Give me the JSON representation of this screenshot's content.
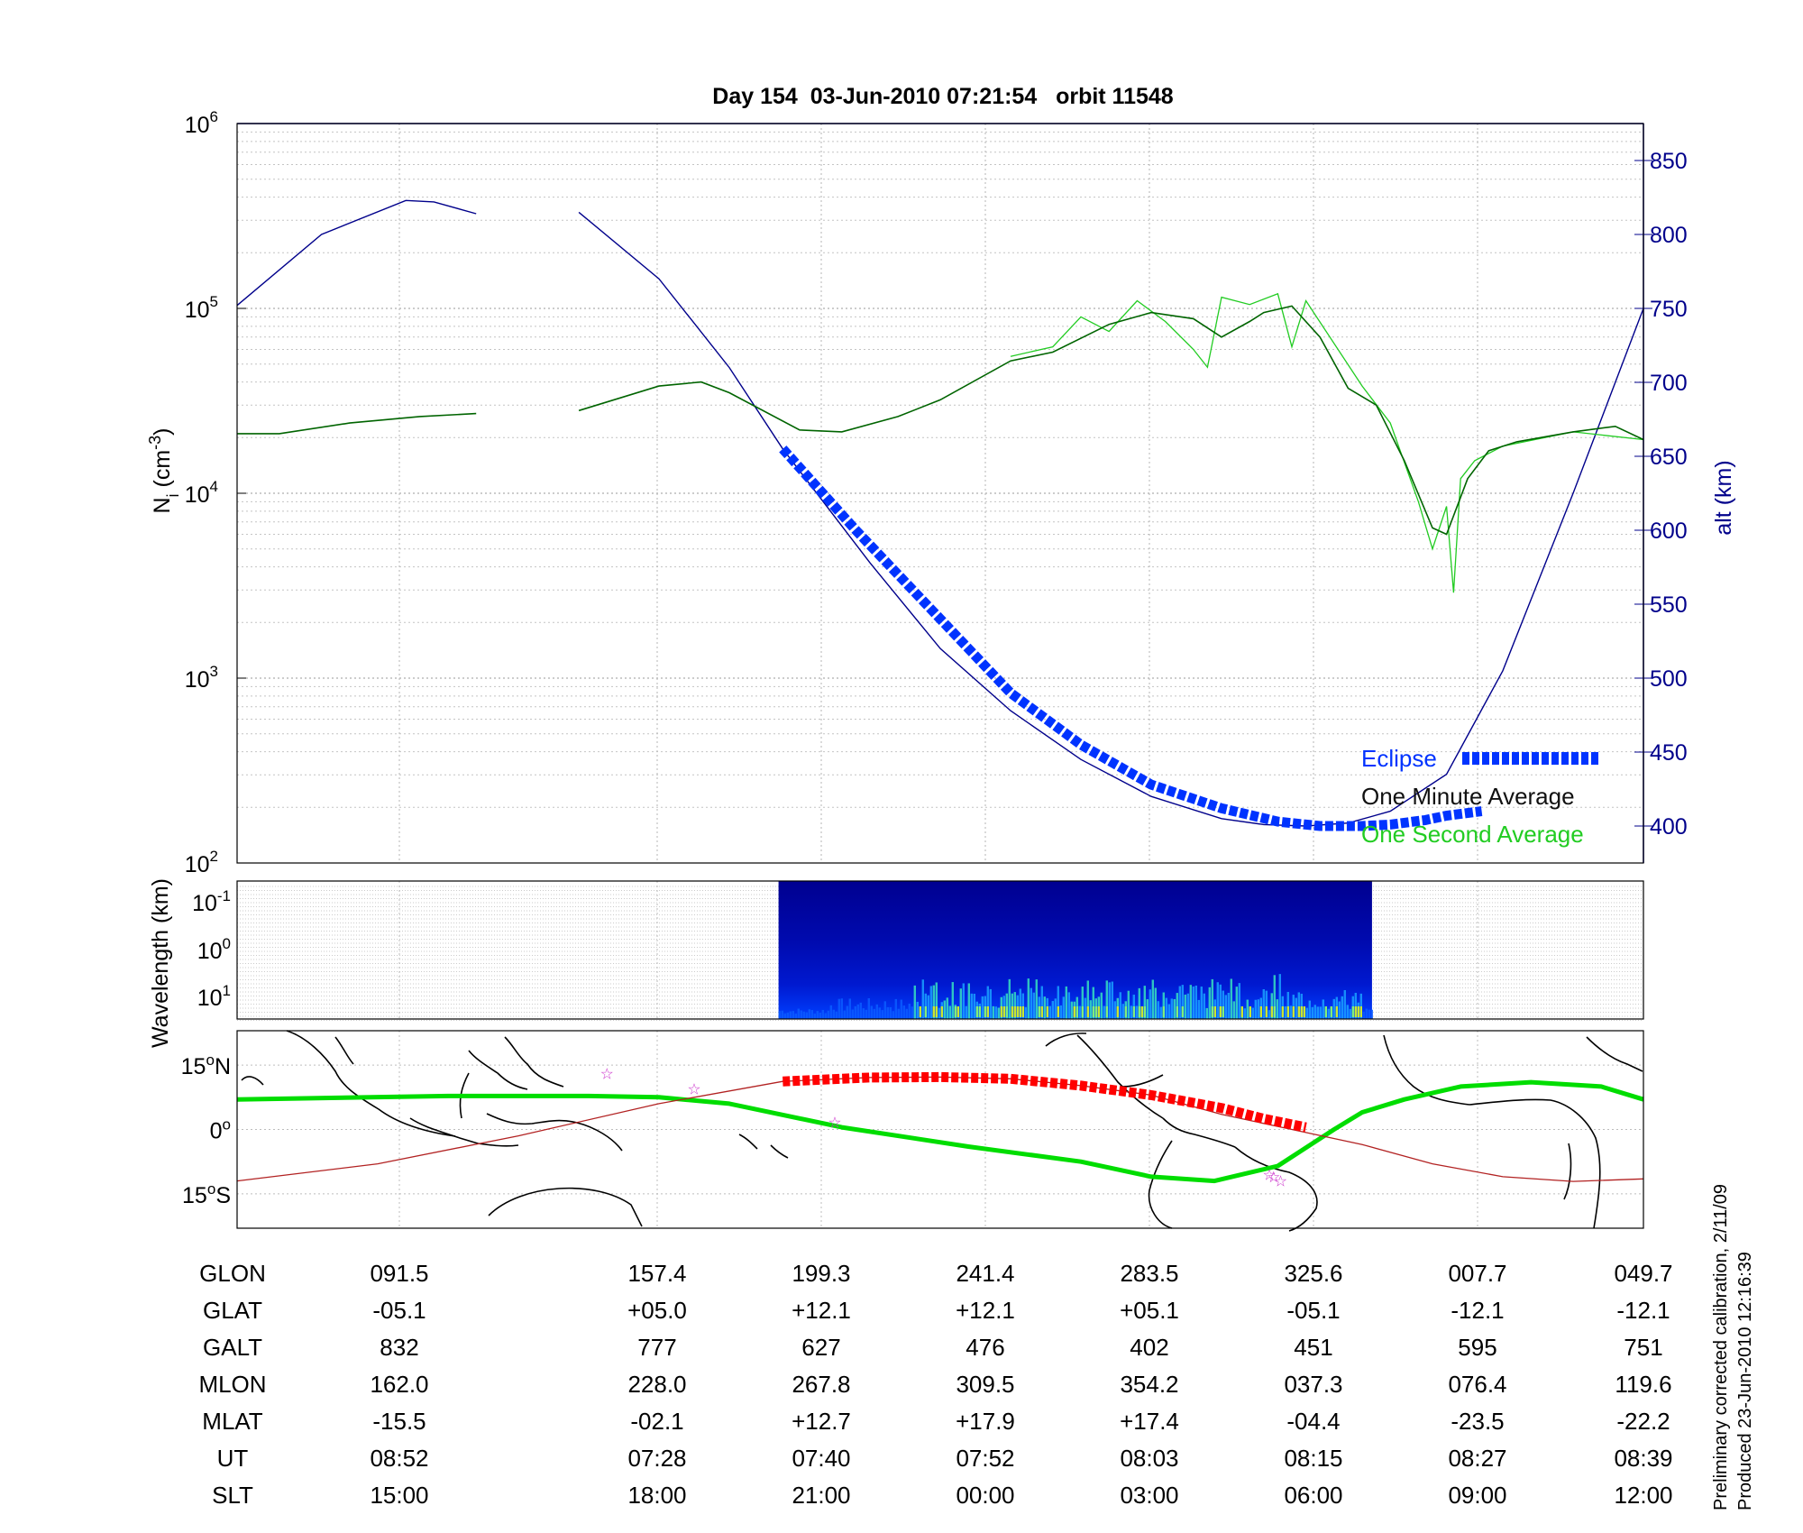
{
  "title": "Day 154  03-Jun-2010 07:21:54   orbit 11548",
  "side_note": [
    "Preliminary corrected calibration, 2/11/09",
    "Produced 23-Jun-2010 12:16:39"
  ],
  "colors": {
    "altitude": "#00008b",
    "one_minute": "#006400",
    "one_second": "#22cc22",
    "eclipse": "#0033ff",
    "track_eclipse": "#ff0000",
    "magnetic_equator": "#00dd00",
    "orbit_track": "#b22222",
    "stars": "#cc33cc"
  },
  "chart_data": [
    {
      "type": "line",
      "ylabel": "N_i (cm^-3)",
      "y2label": "alt (km)",
      "yscale": "log",
      "ylim": [
        100,
        1000000
      ],
      "y_ticks": [
        {
          "base": "10",
          "exp": "2"
        },
        {
          "base": "10",
          "exp": "3"
        },
        {
          "base": "10",
          "exp": "4"
        },
        {
          "base": "10",
          "exp": "5"
        },
        {
          "base": "10",
          "exp": "6"
        }
      ],
      "y2lim": [
        375,
        875
      ],
      "y2_ticks": [
        "400",
        "450",
        "500",
        "550",
        "600",
        "650",
        "700",
        "750",
        "800",
        "850"
      ],
      "x_ticks_ut": [
        "08:52",
        "07:28",
        "07:40",
        "07:52",
        "08:03",
        "08:15",
        "08:27",
        "08:39"
      ],
      "legend": {
        "position": "bottom-right",
        "entries": [
          "Eclipse",
          "One Minute Average",
          "One Second Average"
        ]
      },
      "series": [
        {
          "name": "Eclipse",
          "x_frac": [
            0.388,
            0.44,
            0.5,
            0.55,
            0.6,
            0.65,
            0.7,
            0.74,
            0.77,
            0.8,
            0.82,
            0.845,
            0.86,
            0.885
          ],
          "alt_km": [
            655,
            600,
            540,
            490,
            455,
            428,
            412,
            403,
            400,
            400,
            401,
            404,
            407,
            410
          ]
        },
        {
          "name": "One Minute Average",
          "x_frac": [
            0,
            0.03,
            0.08,
            0.13,
            0.17,
            0.173,
            0.243,
            0.3,
            0.33,
            0.35,
            0.4,
            0.43,
            0.47,
            0.5,
            0.55,
            0.58,
            0.62,
            0.65,
            0.68,
            0.7,
            0.72,
            0.73,
            0.75,
            0.77,
            0.79,
            0.81,
            0.83,
            0.85,
            0.86,
            0.875,
            0.89,
            0.91,
            0.95,
            0.98,
            1.0
          ],
          "Ni": [
            21000,
            21000,
            24000,
            26000,
            27000,
            null,
            28000,
            38000,
            40000,
            35000,
            22000,
            21500,
            26000,
            32000,
            52000,
            58000,
            82000,
            95000,
            88000,
            70000,
            85000,
            95000,
            103000,
            70000,
            37000,
            30000,
            15000,
            6500,
            6000,
            12000,
            17000,
            19000,
            21500,
            23000,
            19500
          ]
        },
        {
          "name": "One Second Average",
          "x_frac": [
            0.55,
            0.58,
            0.6,
            0.62,
            0.64,
            0.66,
            0.68,
            0.69,
            0.7,
            0.72,
            0.74,
            0.75,
            0.76,
            0.8,
            0.82,
            0.84,
            0.85,
            0.86,
            0.865,
            0.87,
            0.88,
            0.9,
            0.95,
            1.0
          ],
          "Ni": [
            55000,
            62000,
            90000,
            75000,
            110000,
            85000,
            60000,
            48000,
            115000,
            105000,
            120000,
            62000,
            110000,
            38000,
            24000,
            9000,
            5000,
            8500,
            2900,
            12000,
            15000,
            18000,
            21500,
            19500
          ]
        },
        {
          "name": "alt (km)",
          "x_frac": [
            0,
            0.06,
            0.12,
            0.14,
            0.17,
            0.243,
            0.3,
            0.35,
            0.388,
            0.45,
            0.5,
            0.55,
            0.6,
            0.65,
            0.7,
            0.73,
            0.76,
            0.79,
            0.82,
            0.86,
            0.9,
            0.95,
            1.0
          ],
          "alt_km": [
            752,
            800,
            823,
            822,
            814,
            815,
            770,
            710,
            655,
            578,
            520,
            478,
            445,
            420,
            405,
            401,
            400,
            402,
            410,
            435,
            505,
            625,
            750
          ]
        }
      ]
    },
    {
      "type": "heatmap",
      "ylabel": "Wavelength (km)",
      "y_ticks": [
        {
          "base": "10",
          "exp": "-1"
        },
        {
          "base": "10",
          "exp": "0"
        },
        {
          "base": "10",
          "exp": "1"
        }
      ],
      "data_x_range_frac": [
        0.385,
        0.807
      ]
    },
    {
      "type": "line",
      "y_ticks": [
        {
          "value": "15",
          "unit": "o",
          "hemi": "N"
        },
        {
          "value": "0",
          "unit": "o",
          "hemi": ""
        },
        {
          "value": "15",
          "unit": "o",
          "hemi": "S"
        }
      ],
      "ylim": [
        -23,
        23
      ],
      "series": [
        {
          "name": "magnetic equator",
          "x_frac": [
            0,
            0.15,
            0.25,
            0.3,
            0.35,
            0.43,
            0.52,
            0.6,
            0.65,
            0.695,
            0.74,
            0.78,
            0.8,
            0.83,
            0.87,
            0.92,
            0.97,
            1.0
          ],
          "lat": [
            7,
            7.8,
            7.8,
            7.5,
            6,
            0.5,
            -4,
            -7.5,
            -11,
            -12,
            -8.5,
            0,
            4,
            7,
            10,
            11,
            10,
            7
          ]
        },
        {
          "name": "orbit track",
          "x_frac": [
            0,
            0.1,
            0.2,
            0.3,
            0.388,
            0.45,
            0.5,
            0.55,
            0.6,
            0.65,
            0.7,
            0.75,
            0.8,
            0.85,
            0.9,
            0.95,
            1.0
          ],
          "lat": [
            -12,
            -8,
            -1.5,
            6,
            11.2,
            12.1,
            12.2,
            11.8,
            10.2,
            8,
            3.5,
            0,
            -3.5,
            -8,
            -11,
            -12.1,
            -11.5
          ]
        },
        {
          "name": "eclipse track",
          "x_frac": [
            0.388,
            0.45,
            0.5,
            0.55,
            0.6,
            0.65,
            0.7,
            0.73,
            0.76
          ],
          "lat": [
            11.2,
            12.1,
            12.2,
            11.8,
            10.2,
            8,
            5,
            2.5,
            0.5
          ]
        }
      ],
      "stars": [
        {
          "x_frac": 0.263,
          "lat": 13
        },
        {
          "x_frac": 0.325,
          "lat": 9.5
        },
        {
          "x_frac": 0.425,
          "lat": 1.7
        },
        {
          "x_frac": 0.742,
          "lat": -12
        },
        {
          "x_frac": 0.737,
          "lat": -11
        },
        {
          "x_frac": 0.734,
          "lat": -10.5
        }
      ]
    }
  ],
  "table": {
    "row_labels": [
      "GLON",
      "GLAT",
      "GALT",
      "MLON",
      "MLAT",
      "UT",
      "SLT"
    ],
    "columns": [
      [
        "091.5",
        "-05.1",
        "832",
        "162.0",
        "-15.5",
        "08:52",
        "15:00"
      ],
      [
        "157.4",
        "+05.0",
        "777",
        "228.0",
        "-02.1",
        "07:28",
        "18:00"
      ],
      [
        "199.3",
        "+12.1",
        "627",
        "267.8",
        "+12.7",
        "07:40",
        "21:00"
      ],
      [
        "241.4",
        "+12.1",
        "476",
        "309.5",
        "+17.9",
        "07:52",
        "00:00"
      ],
      [
        "283.5",
        "+05.1",
        "402",
        "354.2",
        "+17.4",
        "08:03",
        "03:00"
      ],
      [
        "325.6",
        "-05.1",
        "451",
        "037.3",
        "-04.4",
        "08:15",
        "06:00"
      ],
      [
        "007.7",
        "-12.1",
        "595",
        "076.4",
        "-23.5",
        "08:27",
        "09:00"
      ],
      [
        "049.7",
        "-12.1",
        "751",
        "119.6",
        "-22.2",
        "08:39",
        "12:00"
      ]
    ]
  }
}
